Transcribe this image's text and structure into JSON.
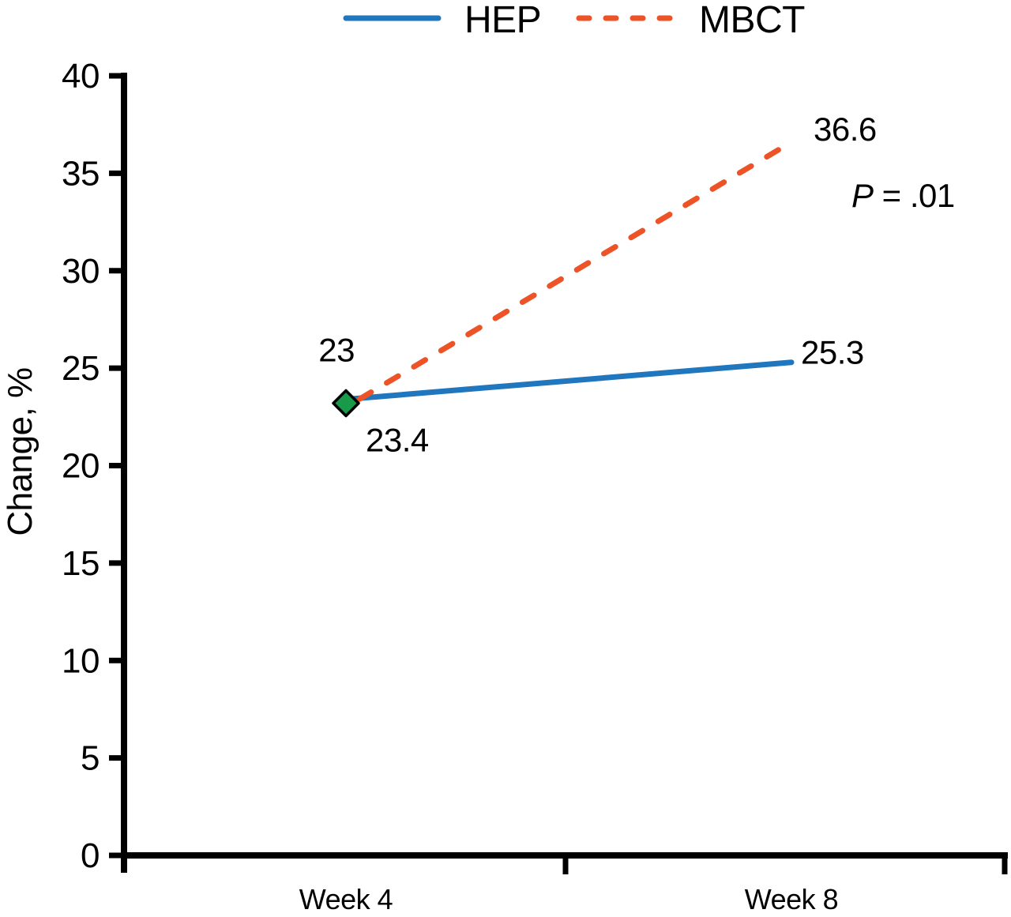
{
  "chart_data": {
    "type": "line",
    "title": "",
    "xlabel": "",
    "ylabel": "Change, %",
    "categories": [
      "Week 4",
      "Week 8"
    ],
    "ylim": [
      0,
      40
    ],
    "yticks": [
      0,
      5,
      10,
      15,
      20,
      25,
      30,
      35,
      40
    ],
    "grid": false,
    "legend_position": "top",
    "series": [
      {
        "name": "HEP",
        "style": "solid",
        "color": "#2177BE",
        "values": [
          23.4,
          25.3
        ],
        "point_labels": [
          "23.4",
          "25.3"
        ]
      },
      {
        "name": "MBCT",
        "style": "dashed",
        "color": "#ED5327",
        "values": [
          23,
          36.6
        ],
        "point_labels": [
          "23",
          "36.6"
        ]
      }
    ],
    "baseline_marker": {
      "shape": "diamond",
      "fill": "#189A4A",
      "stroke": "#000000",
      "category": "Week 4",
      "value": 23.2
    },
    "annotation": {
      "text": "P = .01",
      "italic_part": "P",
      "rest_part": " = .01"
    }
  }
}
